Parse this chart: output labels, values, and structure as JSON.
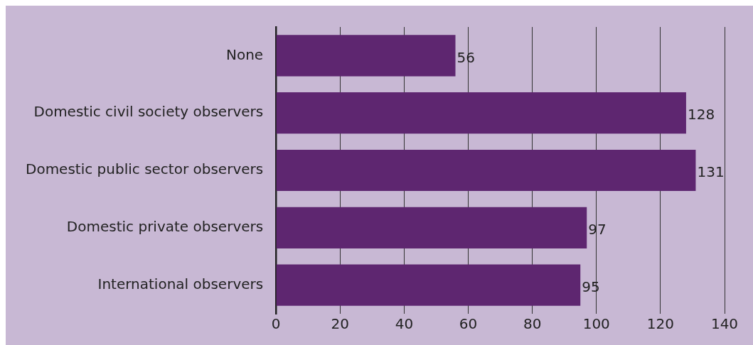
{
  "chart_data": {
    "type": "bar",
    "orientation": "horizontal",
    "categories": [
      "None",
      "Domestic civil society observers",
      "Domestic public sector observers",
      "Domestic private observers",
      "International observers"
    ],
    "values": [
      56,
      128,
      131,
      97,
      95
    ],
    "color": "#5e2670",
    "xlim": [
      0,
      140
    ],
    "xticks": [
      0,
      20,
      40,
      60,
      80,
      100,
      120,
      140
    ],
    "grid": "x",
    "data_labels": true,
    "legend": false
  }
}
